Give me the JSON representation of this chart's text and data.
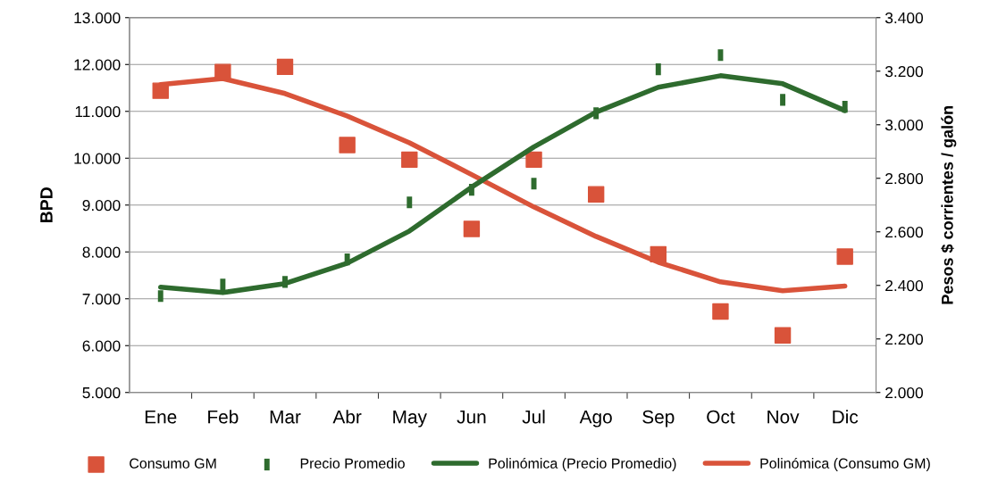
{
  "chart_data": {
    "type": "scatter",
    "ylabel": "BPD",
    "y2label": "Pesos $ corrientes / galón",
    "categories": [
      "Ene",
      "Feb",
      "Mar",
      "Abr",
      "May",
      "Jun",
      "Jul",
      "Ago",
      "Sep",
      "Oct",
      "Nov",
      "Dic"
    ],
    "series": [
      {
        "name": "Consumo GM",
        "marker": "square",
        "color": "#d9533a",
        "values": [
          11440,
          11840,
          11950,
          10280,
          9970,
          8490,
          9970,
          9230,
          7950,
          6730,
          6220,
          7900
        ]
      },
      {
        "name": "Precio Promedio",
        "axis": "y2",
        "color": "#2e6b2e",
        "values": [
          2360,
          2403,
          2413,
          2497,
          2710,
          2757,
          2780,
          3043,
          3207,
          3260,
          3093,
          3067
        ]
      },
      {
        "name": "Polinómica (Precio Promedio)",
        "type": "line",
        "axis": "y2",
        "color": "#2e6b2e",
        "values": [
          2393,
          2373,
          2407,
          2483,
          2603,
          2767,
          2917,
          3047,
          3140,
          3183,
          3153,
          3053
        ]
      },
      {
        "name": "Polinómica (Consumo GM)",
        "type": "line",
        "color": "#d9533a",
        "values": [
          11570,
          11700,
          11380,
          10900,
          10330,
          9650,
          8960,
          8330,
          7780,
          7360,
          7170,
          7270
        ]
      }
    ],
    "ylim": [
      5000,
      13000
    ],
    "yticks": [
      {
        "value": 5000,
        "label": "5.000"
      },
      {
        "value": 6000,
        "label": "6.000"
      },
      {
        "value": 7000,
        "label": "7.000"
      },
      {
        "value": 8000,
        "label": "8.000"
      },
      {
        "value": 9000,
        "label": "9.000"
      },
      {
        "value": 10000,
        "label": "10.000"
      },
      {
        "value": 11000,
        "label": "11.000"
      },
      {
        "value": 12000,
        "label": "12.000"
      },
      {
        "value": 13000,
        "label": "13.000"
      }
    ],
    "y2lim": [
      2000,
      3400
    ],
    "y2ticks": [
      {
        "value": 2000,
        "label": "2.000"
      },
      {
        "value": 2200,
        "label": "2.200"
      },
      {
        "value": 2400,
        "label": "2.400"
      },
      {
        "value": 2600,
        "label": "2.600"
      },
      {
        "value": 2800,
        "label": "2.800"
      },
      {
        "value": 3000,
        "label": "3.000"
      },
      {
        "value": 3200,
        "label": "3.200"
      },
      {
        "value": 3400,
        "label": "3.400"
      }
    ],
    "grid": "y",
    "legend": "bottom"
  }
}
